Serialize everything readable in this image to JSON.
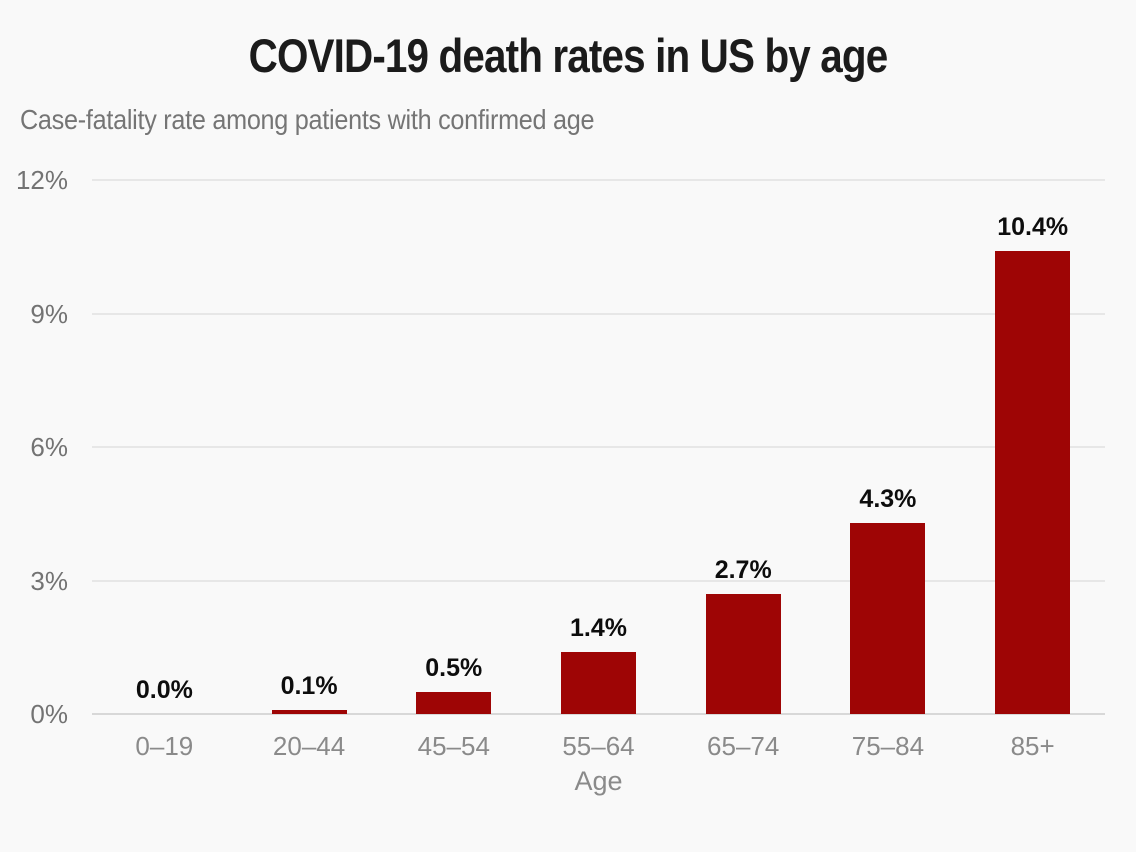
{
  "header": {
    "title": "COVID-19 death rates in US by age",
    "subtitle": "Case-fatality rate among patients with confirmed age"
  },
  "chart_data": {
    "type": "bar",
    "title": "COVID-19 death rates in US by age",
    "subtitle": "Case-fatality rate among patients with confirmed age",
    "categories": [
      "0–19",
      "20–44",
      "45–54",
      "55–64",
      "65–74",
      "75–84",
      "85+"
    ],
    "values": [
      0.0,
      0.1,
      0.5,
      1.4,
      2.7,
      4.3,
      10.4
    ],
    "value_labels": [
      "0.0%",
      "0.1%",
      "0.5%",
      "1.4%",
      "2.7%",
      "4.3%",
      "10.4%"
    ],
    "xlabel": "Age",
    "ylabel": "",
    "y_tick_labels": [
      "0%",
      "3%",
      "6%",
      "9%",
      "12%"
    ],
    "y_tick_values": [
      0,
      3,
      6,
      9,
      12
    ],
    "ylim": [
      0,
      12
    ],
    "grid": "horizontal-only",
    "legend": "none",
    "colors": {
      "bar": "#9e0505",
      "background": "#f9f9f9",
      "title_text": "#1b1b1b",
      "subtitle_text": "#757575",
      "value_label_text": "#0d0d0d",
      "y_tick_text": "#737373",
      "x_tick_text": "#8a8a8a",
      "gridline": "#e7e7e7",
      "baseline": "#d8d8d8"
    }
  }
}
